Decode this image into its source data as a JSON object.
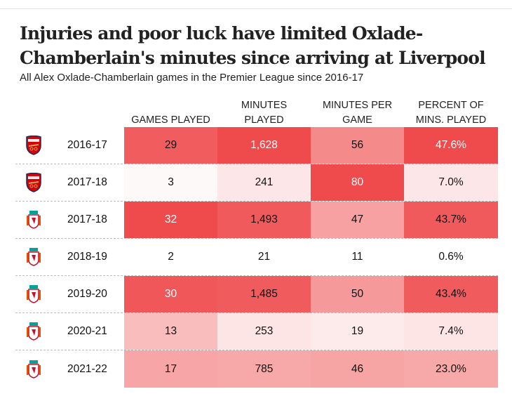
{
  "title": "Injuries and poor luck have limited Oxlade-Chamberlain's minutes since arriving at Liverpool",
  "subtitle": "All Alex Oxlade-Chamberlain games in the Premier League since 2016-17",
  "colors": {
    "max": "#ef4b4d",
    "min": "#ffffff",
    "arsenal": "#db0007",
    "liverpool": "#c8102e",
    "liverpool_accent": "#00a398"
  },
  "chart_data": {
    "type": "table",
    "title": "Injuries and poor luck have limited Oxlade-Chamberlain's minutes since arriving at Liverpool",
    "subtitle": "All Alex Oxlade-Chamberlain games in the Premier League since 2016-17",
    "columns": [
      "GAMES PLAYED",
      "MINUTES PLAYED",
      "MINUTES PER GAME",
      "PERCENT OF MINS. PLAYED"
    ],
    "rows": [
      {
        "club": "Arsenal",
        "club_icon": "arsenal-crest-icon",
        "season": "2016-17",
        "games": 29,
        "minutes": 1628,
        "mpg": 56,
        "pct": 47.6,
        "display": [
          "29",
          "1,628",
          "56",
          "47.6%"
        ]
      },
      {
        "club": "Arsenal",
        "club_icon": "arsenal-crest-icon",
        "season": "2017-18",
        "games": 3,
        "minutes": 241,
        "mpg": 80,
        "pct": 7.0,
        "display": [
          "3",
          "241",
          "80",
          "7.0%"
        ]
      },
      {
        "club": "Liverpool",
        "club_icon": "liverpool-crest-icon",
        "season": "2017-18",
        "games": 32,
        "minutes": 1493,
        "mpg": 47,
        "pct": 43.7,
        "display": [
          "32",
          "1,493",
          "47",
          "43.7%"
        ]
      },
      {
        "club": "Liverpool",
        "club_icon": "liverpool-crest-icon",
        "season": "2018-19",
        "games": 2,
        "minutes": 21,
        "mpg": 11,
        "pct": 0.6,
        "display": [
          "2",
          "21",
          "11",
          "0.6%"
        ]
      },
      {
        "club": "Liverpool",
        "club_icon": "liverpool-crest-icon",
        "season": "2019-20",
        "games": 30,
        "minutes": 1485,
        "mpg": 50,
        "pct": 43.4,
        "display": [
          "30",
          "1,485",
          "50",
          "43.4%"
        ]
      },
      {
        "club": "Liverpool",
        "club_icon": "liverpool-crest-icon",
        "season": "2020-21",
        "games": 13,
        "minutes": 253,
        "mpg": 19,
        "pct": 7.4,
        "display": [
          "13",
          "253",
          "19",
          "7.4%"
        ]
      },
      {
        "club": "Liverpool",
        "club_icon": "liverpool-crest-icon",
        "season": "2021-22",
        "games": 17,
        "minutes": 785,
        "mpg": 46,
        "pct": 23.0,
        "display": [
          "17",
          "785",
          "46",
          "23.0%"
        ]
      }
    ]
  },
  "headers": {
    "games": "GAMES PLAYED",
    "minutes": [
      "MINUTES",
      "PLAYED"
    ],
    "mpg": [
      "MINUTES PER",
      "GAME"
    ],
    "pct": [
      "PERCENT OF",
      "MINS. PLAYED"
    ]
  }
}
